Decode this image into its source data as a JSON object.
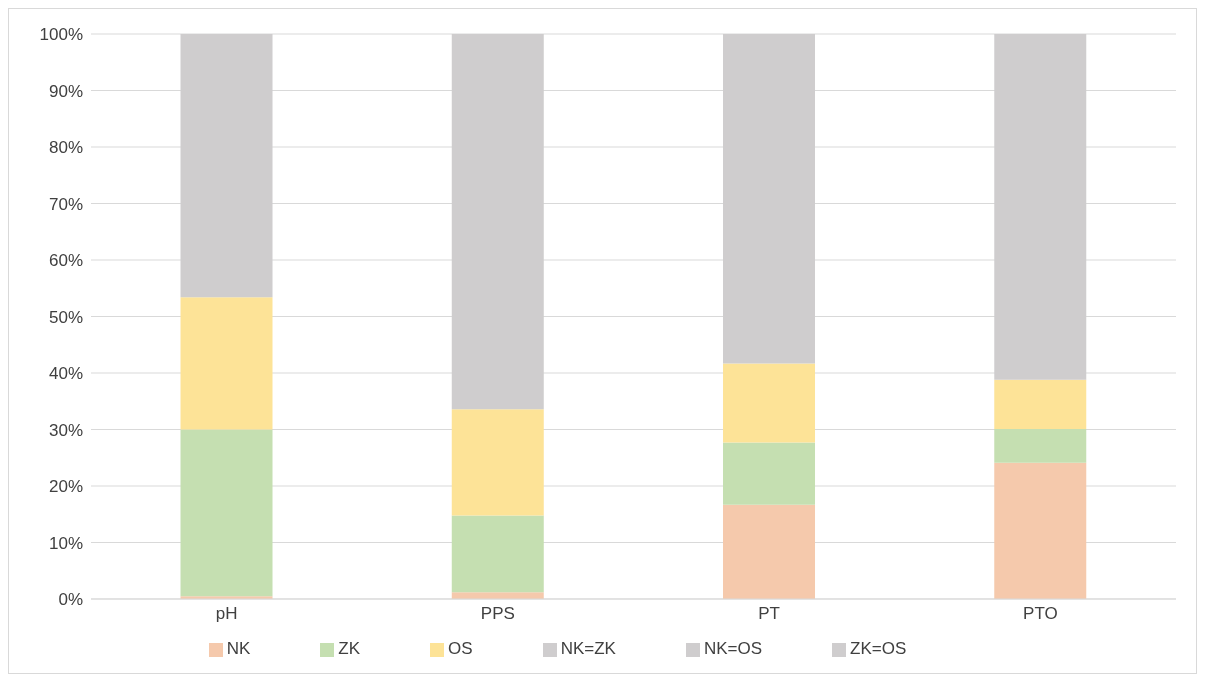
{
  "chart_data": {
    "type": "bar",
    "stacked": true,
    "categories": [
      "pH",
      "PPS",
      "PT",
      "PTO"
    ],
    "series": [
      {
        "name": "NK",
        "color": "#f5c9ac",
        "values": [
          0.5,
          1.2,
          16.7,
          24.1
        ]
      },
      {
        "name": "ZK",
        "color": "#c5dfb1",
        "values": [
          29.5,
          13.6,
          11.0,
          6.0
        ]
      },
      {
        "name": "OS",
        "color": "#fde397",
        "values": [
          23.4,
          18.8,
          14.0,
          8.7
        ]
      },
      {
        "name": "NK=ZK",
        "color": "#cfcdce",
        "values": [
          46.6,
          66.4,
          58.3,
          61.2
        ]
      },
      {
        "name": "NK=OS",
        "color": "#cfcdce",
        "values": [
          0,
          0,
          0,
          0
        ]
      },
      {
        "name": "ZK=OS",
        "color": "#cfcdce",
        "values": [
          0,
          0,
          0,
          0
        ]
      }
    ],
    "ylim": [
      0,
      100
    ],
    "yticks": [
      {
        "value": 0,
        "label": "0%"
      },
      {
        "value": 10,
        "label": "10%"
      },
      {
        "value": 20,
        "label": "20%"
      },
      {
        "value": 30,
        "label": "30%"
      },
      {
        "value": 40,
        "label": "40%"
      },
      {
        "value": 50,
        "label": "50%"
      },
      {
        "value": 60,
        "label": "60%"
      },
      {
        "value": 70,
        "label": "70%"
      },
      {
        "value": 80,
        "label": "80%"
      },
      {
        "value": 90,
        "label": "90%"
      },
      {
        "value": 100,
        "label": "100%"
      }
    ],
    "grid": "y",
    "legend": "bottom"
  }
}
